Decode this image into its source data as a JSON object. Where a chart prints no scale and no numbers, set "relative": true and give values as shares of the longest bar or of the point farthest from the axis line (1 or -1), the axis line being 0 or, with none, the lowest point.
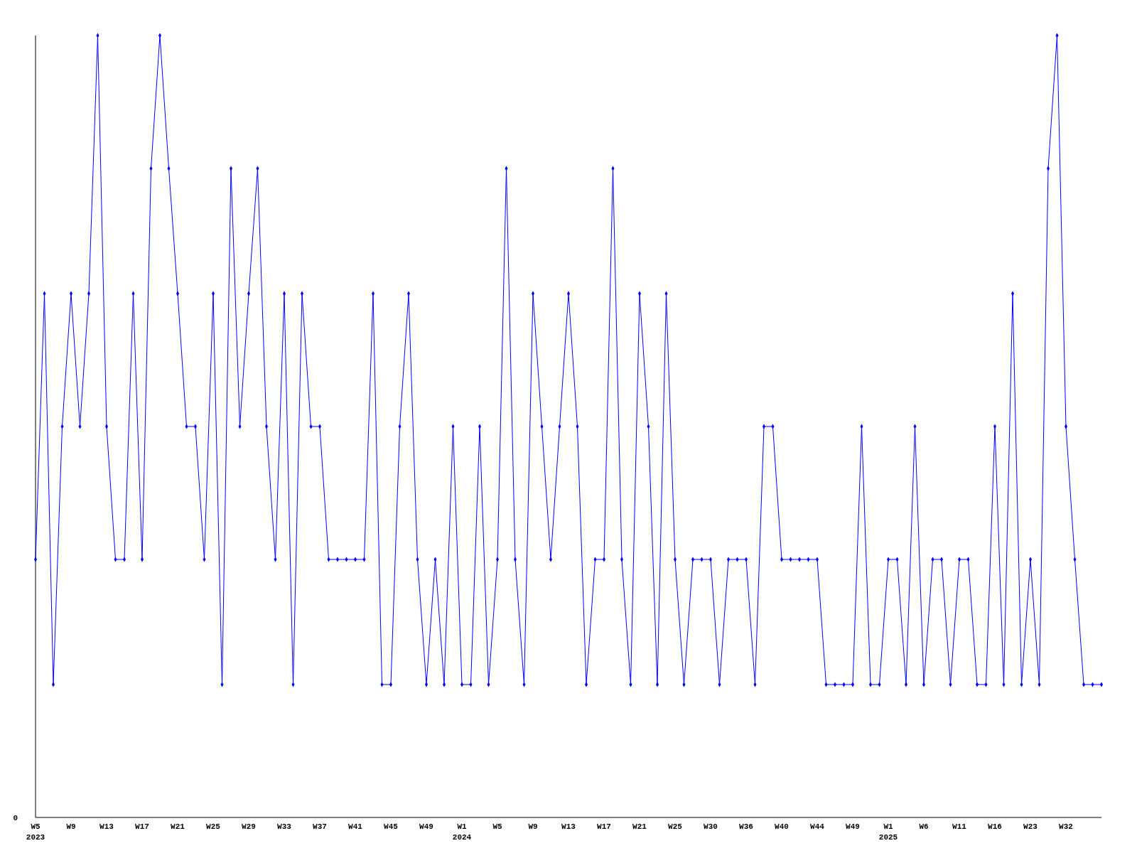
{
  "chart_data": {
    "type": "line",
    "relative": true,
    "marker": "diamond",
    "line_style": "solid",
    "grid": false,
    "annotations": [
      "0"
    ],
    "categories": [
      "W5 2023",
      null,
      null,
      null,
      "W9",
      null,
      null,
      null,
      "W13",
      null,
      null,
      null,
      "W17",
      null,
      null,
      null,
      "W21",
      null,
      null,
      null,
      "W25",
      null,
      null,
      null,
      "W29",
      null,
      null,
      null,
      "W33",
      null,
      null,
      null,
      "W37",
      null,
      null,
      null,
      "W41",
      null,
      null,
      null,
      "W45",
      null,
      null,
      null,
      "W49",
      null,
      null,
      null,
      "W1 2024",
      null,
      null,
      null,
      "W5",
      null,
      null,
      null,
      "W9",
      null,
      null,
      null,
      "W13",
      null,
      null,
      null,
      "W17",
      null,
      null,
      null,
      "W21",
      null,
      null,
      null,
      "W25",
      null,
      null,
      null,
      "W30",
      null,
      null,
      null,
      "W36",
      null,
      null,
      null,
      "W40",
      null,
      null,
      null,
      "W44",
      null,
      null,
      null,
      "W49",
      null,
      null,
      null,
      "W1 2025",
      null,
      null,
      null,
      "W6",
      null,
      null,
      null,
      "W11",
      null,
      null,
      null,
      "W16",
      null,
      null,
      null,
      "W23",
      null,
      null,
      null,
      "W32",
      null,
      null,
      null,
      null
    ],
    "series": [
      {
        "color": "#0000ff",
        "values": [
          0.33,
          0.67,
          0.17,
          0.5,
          0.67,
          0.5,
          0.67,
          1,
          0.5,
          0.33,
          0.33,
          0.67,
          0.33,
          0.83,
          1,
          0.83,
          0.67,
          0.5,
          0.5,
          0.33,
          0.67,
          0.17,
          0.83,
          0.5,
          0.67,
          0.83,
          0.5,
          0.33,
          0.67,
          0.17,
          0.67,
          0.5,
          0.5,
          0.33,
          0.33,
          0.33,
          0.33,
          0.33,
          0.67,
          0.17,
          0.17,
          0.5,
          0.67,
          0.33,
          0.17,
          0.33,
          0.17,
          0.5,
          0.17,
          0.17,
          0.5,
          0.17,
          0.33,
          0.83,
          0.33,
          0.17,
          0.67,
          0.5,
          0.33,
          0.5,
          0.67,
          0.5,
          0.17,
          0.33,
          0.33,
          0.83,
          0.33,
          0.17,
          0.67,
          0.5,
          0.17,
          0.67,
          0.33,
          0.17,
          0.33,
          0.33,
          0.33,
          0.17,
          0.33,
          0.33,
          0.33,
          0.17,
          0.5,
          0.5,
          0.33,
          0.33,
          0.33,
          0.33,
          0.33,
          0.17,
          0.17,
          0.17,
          0.17,
          0.5,
          0.17,
          0.17,
          0.33,
          0.33,
          0.17,
          0.5,
          0.17,
          0.33,
          0.33,
          0.17,
          0.33,
          0.33,
          0.17,
          0.17,
          0.5,
          0.17,
          0.67,
          0.17,
          0.33,
          0.17,
          0.83,
          1,
          0.5,
          0.33,
          0.17,
          0.17,
          0.17
        ]
      }
    ]
  }
}
